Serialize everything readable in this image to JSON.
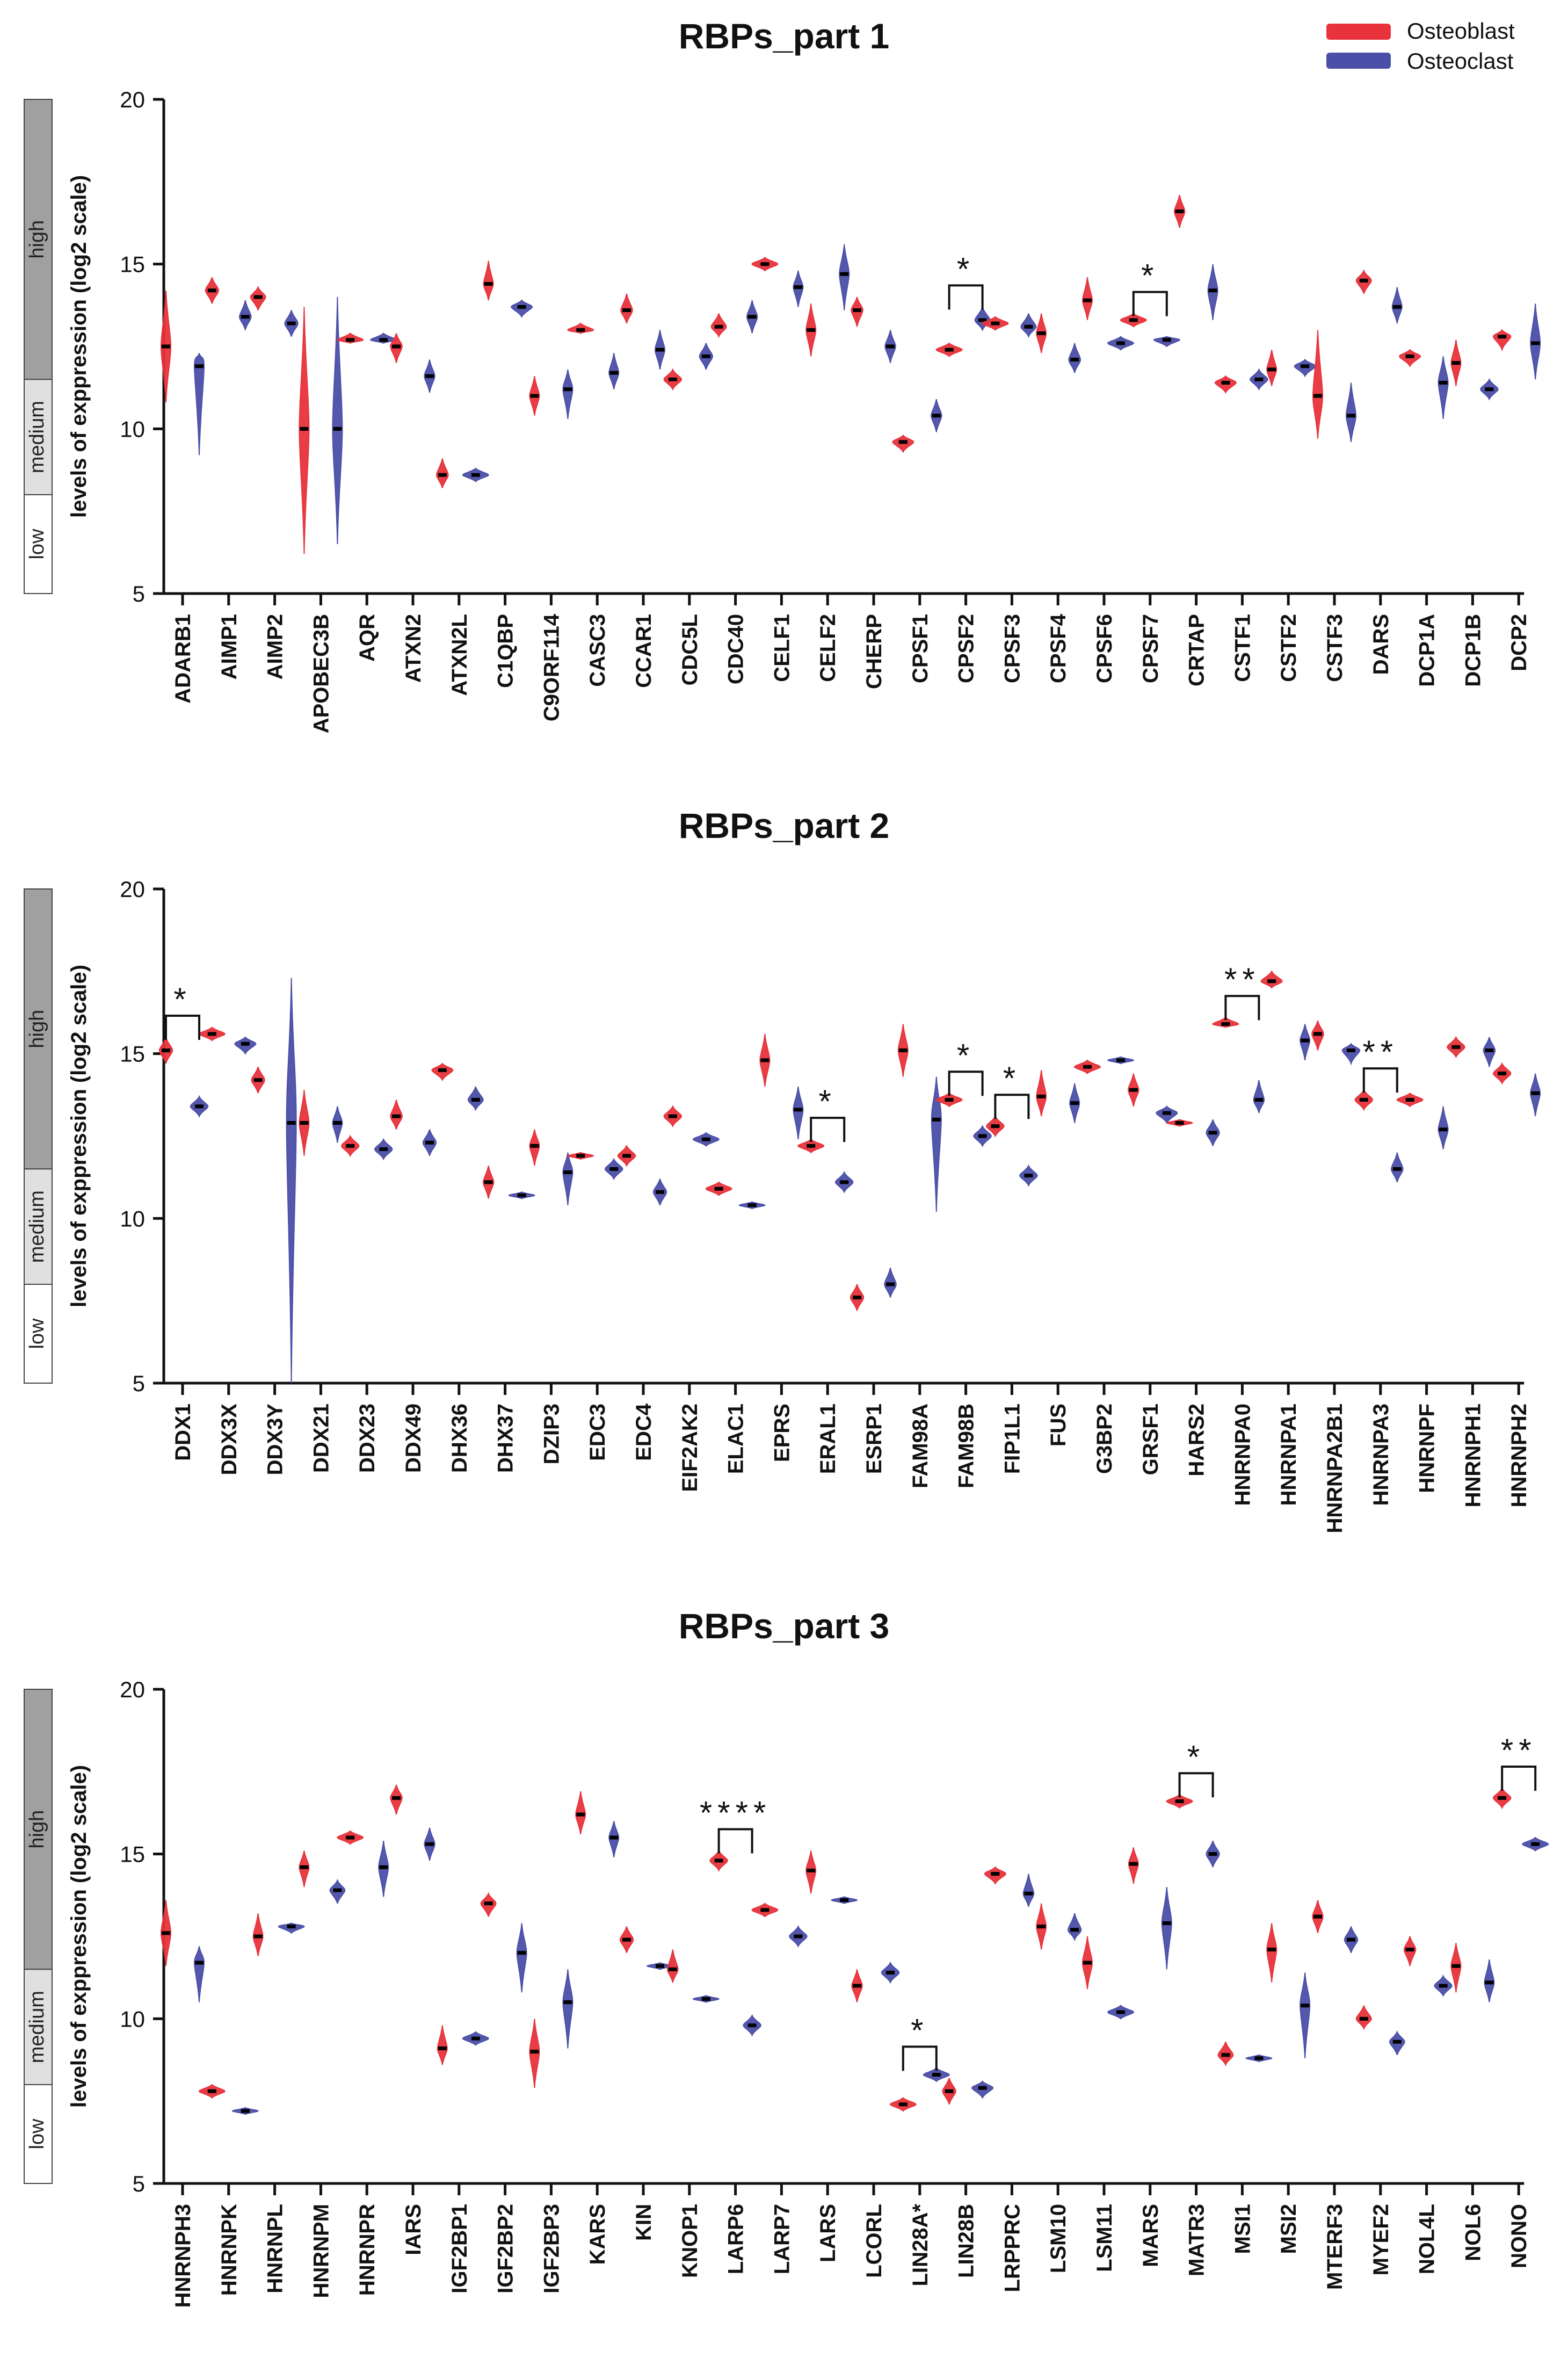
{
  "legend": [
    {
      "label": "Osteoblast",
      "color": "#e8333c"
    },
    {
      "label": "Osteoclast",
      "color": "#4b4fa8"
    }
  ],
  "level_labels": {
    "high": "high",
    "medium": "medium",
    "low": "low"
  },
  "chart_data": [
    {
      "type": "violin",
      "title": "RBPs_part 1",
      "ylabel": "levels of exppression (log2 scale)",
      "ylim": [
        5,
        20
      ],
      "yticks": [
        "5",
        "10",
        "15",
        "20"
      ],
      "categories": [
        "ADARB1",
        "AIMP1",
        "AIMP2",
        "APOBEC3B",
        "AQR",
        "ATXN2",
        "ATXN2L",
        "C1QBP",
        "C9ORF114",
        "CASC3",
        "CCAR1",
        "CDC5L",
        "CDC40",
        "CELF1",
        "CELF2",
        "CHERP",
        "CPSF1",
        "CPSF2",
        "CPSF3",
        "CPSF4",
        "CPSF6",
        "CPSF7",
        "CRTAP",
        "CSTF1",
        "CSTF2",
        "CSTF3",
        "DARS",
        "DCP1A",
        "DCP1B",
        "DCP2"
      ],
      "series": [
        {
          "name": "Osteoblast",
          "median": [
            12.5,
            14.2,
            14.0,
            10.0,
            12.7,
            12.5,
            8.6,
            14.4,
            11.0,
            13.0,
            13.6,
            11.5,
            13.1,
            15.0,
            13.0,
            13.6,
            9.6,
            12.4,
            13.2,
            12.9,
            13.9,
            13.3,
            16.6,
            11.4,
            11.8,
            11.0,
            14.5,
            12.2,
            12.0,
            12.8
          ],
          "min": [
            10.8,
            13.8,
            13.6,
            6.2,
            12.6,
            12.0,
            8.2,
            13.9,
            10.4,
            12.9,
            13.2,
            11.2,
            12.8,
            14.8,
            12.2,
            13.1,
            9.3,
            12.2,
            13.0,
            12.3,
            13.3,
            13.1,
            16.1,
            11.1,
            11.3,
            9.7,
            14.1,
            11.9,
            11.3,
            12.4
          ],
          "max": [
            14.2,
            14.6,
            14.3,
            13.7,
            12.9,
            12.9,
            9.1,
            15.1,
            11.6,
            13.2,
            14.1,
            11.8,
            13.5,
            15.2,
            13.8,
            14.0,
            9.8,
            12.6,
            13.4,
            13.5,
            14.6,
            13.5,
            17.1,
            11.6,
            12.4,
            13.0,
            14.8,
            12.4,
            12.7,
            13.0
          ]
        },
        {
          "name": "Osteoclast",
          "median": [
            11.9,
            13.4,
            13.2,
            10.0,
            12.7,
            11.6,
            8.6,
            13.7,
            11.2,
            11.7,
            12.4,
            12.2,
            13.4,
            14.3,
            14.7,
            12.5,
            10.4,
            13.3,
            13.1,
            12.1,
            12.6,
            12.7,
            14.2,
            11.5,
            11.9,
            10.4,
            13.7,
            11.4,
            11.2,
            12.6
          ],
          "min": [
            9.2,
            13.0,
            12.8,
            6.5,
            12.6,
            11.1,
            8.4,
            13.4,
            10.3,
            11.2,
            11.8,
            11.8,
            12.9,
            13.7,
            13.6,
            12.0,
            9.9,
            13.0,
            12.8,
            11.7,
            12.4,
            12.5,
            13.3,
            11.2,
            11.6,
            9.6,
            13.2,
            10.3,
            10.9,
            11.5
          ],
          "max": [
            12.3,
            13.9,
            13.6,
            14.0,
            12.9,
            12.1,
            8.8,
            13.9,
            11.8,
            12.3,
            13.0,
            12.6,
            13.9,
            14.8,
            15.6,
            13.0,
            10.9,
            13.7,
            13.5,
            12.6,
            12.8,
            12.8,
            15.0,
            11.8,
            12.1,
            11.4,
            14.3,
            12.2,
            11.5,
            13.8
          ]
        }
      ],
      "annotations": [
        {
          "category": "CPSF2",
          "label": "*"
        },
        {
          "category": "CPSF7",
          "label": "*"
        }
      ]
    },
    {
      "type": "violin",
      "title": "RBPs_part 2",
      "ylabel": "levels of exppression (log2 scale)",
      "ylim": [
        5,
        20
      ],
      "yticks": [
        "5",
        "10",
        "15",
        "20"
      ],
      "categories": [
        "DDX1",
        "DDX3X",
        "DDX3Y",
        "DDX21",
        "DDX23",
        "DDX49",
        "DHX36",
        "DHX37",
        "DZIP3",
        "EDC3",
        "EDC4",
        "EIF2AK2",
        "ELAC1",
        "EPRS",
        "ERAL1",
        "ESRP1",
        "FAM98A",
        "FAM98B",
        "FIP1L1",
        "FUS",
        "G3BP2",
        "GRSF1",
        "HARS2",
        "HNRNPA0",
        "HNRNPA1",
        "HNRNPA2B1",
        "HNRNPA3",
        "HNRNPF",
        "HNRNPH1",
        "HNRNPH2"
      ],
      "series": [
        {
          "name": "Osteoblast",
          "median": [
            15.1,
            15.6,
            14.2,
            12.9,
            12.2,
            13.1,
            14.5,
            11.1,
            12.2,
            11.9,
            11.9,
            13.1,
            10.9,
            14.8,
            12.2,
            7.6,
            15.1,
            13.6,
            12.8,
            13.7,
            14.6,
            13.9,
            12.9,
            15.9,
            17.2,
            15.6,
            13.6,
            13.6,
            15.2,
            14.4
          ],
          "min": [
            14.7,
            15.4,
            13.8,
            11.9,
            11.9,
            12.7,
            14.2,
            10.6,
            11.6,
            11.8,
            11.6,
            12.8,
            10.7,
            14.0,
            12.0,
            7.2,
            14.3,
            13.4,
            12.5,
            13.1,
            14.4,
            13.4,
            12.8,
            15.8,
            17.0,
            15.1,
            13.3,
            13.4,
            14.9,
            14.1
          ],
          "max": [
            15.5,
            15.8,
            14.6,
            13.9,
            12.5,
            13.6,
            14.7,
            11.6,
            12.7,
            12.0,
            12.2,
            13.4,
            11.1,
            15.6,
            12.4,
            8.0,
            15.9,
            13.8,
            13.1,
            14.5,
            14.8,
            14.4,
            13.0,
            16.1,
            17.5,
            16.0,
            13.9,
            13.8,
            15.5,
            14.7
          ]
        },
        {
          "name": "Osteoclast",
          "median": [
            13.4,
            15.3,
            12.9,
            12.9,
            12.1,
            12.3,
            13.6,
            10.7,
            11.4,
            11.5,
            10.8,
            12.4,
            10.4,
            13.3,
            11.1,
            8.0,
            13.0,
            12.5,
            11.3,
            13.5,
            14.8,
            13.2,
            12.6,
            13.6,
            15.4,
            15.1,
            11.5,
            12.7,
            15.1,
            13.8
          ],
          "min": [
            13.1,
            15.0,
            5.0,
            12.3,
            11.8,
            11.9,
            13.3,
            10.6,
            10.4,
            11.2,
            10.4,
            12.2,
            10.3,
            12.4,
            10.8,
            7.6,
            10.2,
            12.2,
            11.0,
            12.9,
            14.7,
            12.9,
            12.2,
            13.2,
            14.8,
            14.7,
            11.1,
            12.1,
            14.6,
            13.1
          ],
          "max": [
            13.7,
            15.5,
            17.3,
            13.4,
            12.4,
            12.7,
            14.0,
            10.8,
            12.0,
            11.8,
            11.2,
            12.6,
            10.5,
            14.0,
            11.4,
            8.5,
            14.3,
            12.8,
            11.6,
            14.1,
            14.9,
            13.4,
            13.0,
            14.2,
            15.9,
            15.3,
            12.0,
            13.4,
            15.5,
            14.4
          ]
        }
      ],
      "annotations": [
        {
          "category": "DDX1",
          "label": "*"
        },
        {
          "category": "ERAL1",
          "label": "*"
        },
        {
          "category": "FAM98B",
          "label": "*"
        },
        {
          "category": "FIP1L1",
          "label": "*"
        },
        {
          "category": "HNRNPA0",
          "label": "**"
        },
        {
          "category": "HNRNPA3",
          "label": "**"
        }
      ]
    },
    {
      "type": "violin",
      "title": "RBPs_part 3",
      "ylabel": "levels of exppression (log2 scale)",
      "ylim": [
        5,
        20
      ],
      "yticks": [
        "5",
        "10",
        "15",
        "20"
      ],
      "categories": [
        "HNRNPH3",
        "HNRNPK",
        "HNRNPL",
        "HNRNPM",
        "HNRNPR",
        "IARS",
        "IGF2BP1",
        "IGF2BP2",
        "IGF2BP3",
        "KARS",
        "KIN",
        "KNOP1",
        "LARP6",
        "LARP7",
        "LARS",
        "LCORL",
        "LIN28A*",
        "LIN28B",
        "LRPPRC",
        "LSM10",
        "LSM11",
        "MARS",
        "MATR3",
        "MSI1",
        "MSI2",
        "MTERF3",
        "MYEF2",
        "NOL4L",
        "NOL6",
        "NONO"
      ],
      "series": [
        {
          "name": "Osteoblast",
          "median": [
            12.6,
            7.8,
            12.5,
            14.6,
            15.5,
            16.7,
            9.1,
            13.5,
            9.0,
            16.2,
            12.4,
            11.5,
            14.8,
            13.3,
            14.5,
            11.0,
            7.4,
            7.8,
            14.4,
            12.8,
            11.7,
            14.7,
            16.6,
            8.9,
            12.1,
            13.1,
            10.0,
            12.1,
            11.6,
            16.7
          ],
          "min": [
            11.6,
            7.6,
            11.9,
            14.0,
            15.3,
            16.2,
            8.6,
            13.1,
            7.9,
            15.6,
            12.0,
            11.1,
            14.5,
            13.1,
            13.8,
            10.5,
            7.2,
            7.4,
            14.1,
            12.1,
            10.9,
            14.1,
            16.4,
            8.6,
            11.1,
            12.6,
            9.7,
            11.6,
            10.8,
            16.4
          ],
          "max": [
            13.6,
            8.0,
            13.2,
            15.1,
            15.7,
            17.1,
            9.8,
            13.8,
            10.0,
            16.9,
            12.8,
            12.1,
            15.1,
            13.5,
            15.1,
            11.5,
            7.6,
            8.2,
            14.6,
            13.5,
            12.5,
            15.2,
            16.8,
            9.3,
            12.9,
            13.6,
            10.4,
            12.5,
            12.3,
            17.0
          ]
        },
        {
          "name": "Osteoclast",
          "median": [
            11.7,
            7.2,
            12.8,
            13.9,
            14.6,
            15.3,
            9.4,
            12.0,
            10.5,
            15.5,
            11.6,
            10.6,
            9.8,
            12.5,
            13.6,
            11.4,
            8.3,
            7.9,
            13.8,
            12.7,
            10.2,
            12.9,
            15.0,
            8.8,
            10.4,
            12.4,
            9.3,
            11.0,
            11.1,
            15.3
          ],
          "min": [
            10.5,
            7.1,
            12.6,
            13.5,
            13.7,
            14.8,
            9.2,
            10.8,
            9.1,
            14.9,
            11.5,
            10.5,
            9.5,
            12.2,
            13.5,
            11.1,
            8.1,
            7.6,
            13.4,
            12.4,
            10.0,
            11.5,
            14.6,
            8.7,
            8.8,
            12.0,
            8.9,
            10.7,
            10.5,
            15.1
          ],
          "max": [
            12.2,
            7.3,
            12.9,
            14.2,
            15.4,
            15.8,
            9.6,
            12.9,
            11.5,
            16.0,
            11.7,
            10.7,
            10.1,
            12.8,
            13.7,
            11.7,
            8.5,
            8.1,
            14.4,
            13.2,
            10.4,
            14.0,
            15.4,
            8.9,
            11.4,
            12.8,
            9.6,
            11.3,
            11.8,
            15.5
          ]
        }
      ],
      "annotations": [
        {
          "category": "LARP6",
          "label": "****"
        },
        {
          "category": "LIN28A*",
          "label": "*"
        },
        {
          "category": "MATR3",
          "label": "*"
        },
        {
          "category": "NONO",
          "label": "**"
        }
      ]
    }
  ]
}
